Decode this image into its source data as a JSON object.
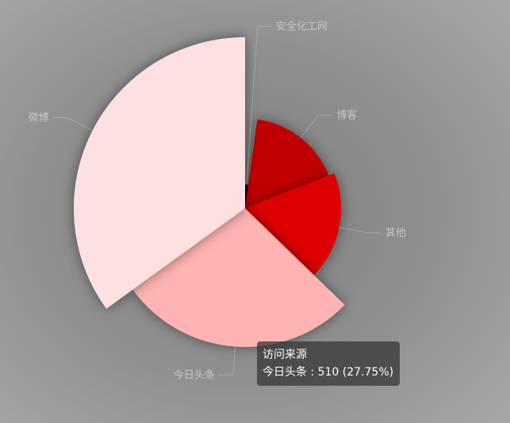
{
  "chart_data": {
    "type": "pie",
    "rose_type": "radius",
    "series": [
      {
        "name": "访问来源",
        "data": [
          {
            "name": "安全化工网",
            "value": 40
          },
          {
            "name": "博客",
            "value": 310
          },
          {
            "name": "其他",
            "value": 335
          },
          {
            "name": "今日头条",
            "value": 510
          },
          {
            "name": "微博",
            "value": 643
          }
        ]
      }
    ],
    "colors": [
      "#1a0000",
      "#c00000",
      "#dd0000",
      "#ffb3b3",
      "#fde0e0"
    ],
    "label_color": "#c6c6c6",
    "background": "#8f8f8f"
  },
  "tooltip": {
    "title": "访问来源",
    "line": "今日头条 : 510 (27.75%)"
  }
}
